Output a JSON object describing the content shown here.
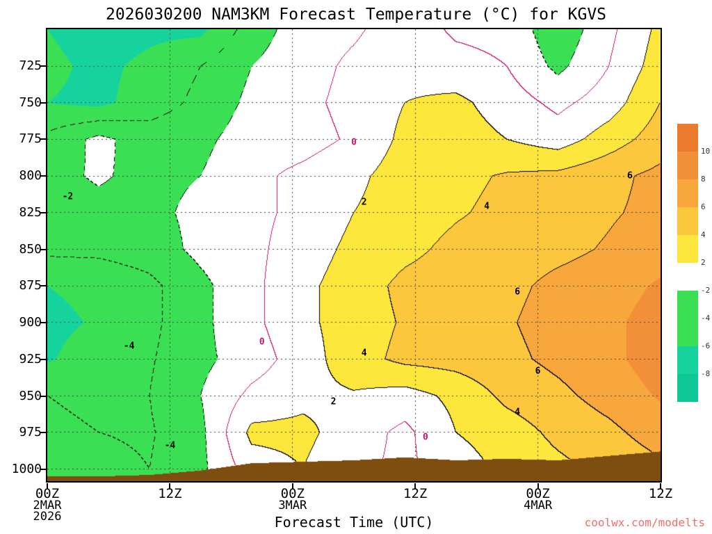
{
  "title": "2026030200 NAM3KM Forecast Temperature (°C) for KGVS",
  "xlabel": "Forecast Time (UTC)",
  "watermark": "coolwx.com/modelts",
  "theme": {
    "watermark_color": "#f46e6e",
    "axis_text_color": "#000000",
    "background": "#ffffff"
  },
  "chart_data": {
    "type": "heatmap",
    "title": "2026030200 NAM3KM Forecast Temperature (°C) for KGVS",
    "xlabel": "Forecast Time (UTC)",
    "x_axis_ticks": [
      {
        "hour": 0,
        "label": "00Z",
        "sub": [
          "2MAR",
          "2026"
        ]
      },
      {
        "hour": 12,
        "label": "12Z",
        "sub": []
      },
      {
        "hour": 24,
        "label": "00Z",
        "sub": [
          "3MAR"
        ]
      },
      {
        "hour": 36,
        "label": "12Z",
        "sub": []
      },
      {
        "hour": 48,
        "label": "00Z",
        "sub": [
          "4MAR"
        ]
      },
      {
        "hour": 60,
        "label": "12Z",
        "sub": []
      }
    ],
    "x_grid_hours": [
      12,
      24,
      36,
      48
    ],
    "y_axis_ticks": [
      725,
      750,
      775,
      800,
      825,
      850,
      875,
      900,
      925,
      950,
      975,
      1000
    ],
    "p_range": [
      700,
      1008
    ],
    "time_hours": [
      0,
      5,
      10,
      15,
      20,
      25,
      30,
      35,
      40,
      45,
      50,
      55,
      60
    ],
    "pressure_levels": [
      700,
      725,
      750,
      775,
      800,
      825,
      850,
      875,
      900,
      925,
      950,
      975,
      1000
    ],
    "temperature_grid": [
      [
        -6.0,
        -7.0,
        -6.5,
        -6.5,
        -3.0,
        -1.0,
        -0.3,
        1.0,
        -0.3,
        -0.5,
        -3.5,
        -0.5,
        2.5
      ],
      [
        -5.5,
        -6.5,
        -5.5,
        -4.0,
        -2.0,
        -0.8,
        0.4,
        1.4,
        0.6,
        0.0,
        -2.5,
        0.0,
        3.0
      ],
      [
        -6.0,
        -6.5,
        -5.0,
        -3.5,
        -1.5,
        -0.5,
        0.6,
        2.0,
        2.5,
        1.0,
        -0.5,
        1.0,
        4.0
      ],
      [
        -3.5,
        -1.5,
        -3.0,
        -2.5,
        -1.0,
        -0.8,
        0.3,
        2.5,
        3.0,
        2.0,
        1.0,
        3.0,
        5.0
      ],
      [
        -2.5,
        -1.8,
        -2.5,
        -2.0,
        -0.5,
        0.5,
        1.5,
        3.0,
        3.5,
        4.2,
        4.5,
        5.5,
        6.5
      ],
      [
        -3.0,
        -2.5,
        -2.5,
        -1.5,
        -0.5,
        0.5,
        2.0,
        3.0,
        3.8,
        4.5,
        5.0,
        5.8,
        6.5
      ],
      [
        -3.5,
        -3.5,
        -3.0,
        -1.5,
        -0.5,
        1.0,
        2.5,
        3.5,
        4.5,
        5.0,
        5.5,
        6.2,
        7.0
      ],
      [
        -6.0,
        -5.5,
        -4.5,
        -2.5,
        -0.5,
        1.5,
        3.0,
        4.5,
        5.0,
        5.5,
        6.5,
        7.0,
        8.3
      ],
      [
        -6.5,
        -5.8,
        -4.5,
        -2.5,
        -0.5,
        1.5,
        3.0,
        4.2,
        5.0,
        5.8,
        6.8,
        7.5,
        9.0
      ],
      [
        -6.2,
        -5.0,
        -4.2,
        -2.5,
        -1.0,
        1.0,
        3.2,
        4.5,
        4.8,
        5.5,
        6.5,
        7.5,
        9.0
      ],
      [
        -4.0,
        -4.5,
        -4.0,
        -2.0,
        0.5,
        1.5,
        1.8,
        1.2,
        2.5,
        4.5,
        5.5,
        6.8,
        8.2
      ],
      [
        -3.5,
        -4.0,
        -4.2,
        -2.5,
        2.5,
        2.5,
        1.0,
        -0.5,
        2.0,
        3.0,
        4.5,
        5.5,
        7.0
      ],
      [
        -3.0,
        -3.5,
        -4.0,
        -2.5,
        1.0,
        2.0,
        0.4,
        -0.4,
        1.0,
        2.5,
        3.5,
        4.5,
        5.5
      ]
    ],
    "terrain_pressure": [
      1005,
      1005,
      1004,
      1001,
      996,
      995,
      994,
      992,
      994,
      993,
      994,
      991,
      988
    ],
    "contour_levels": {
      "zero": [
        0
      ],
      "positive": [
        2,
        4,
        6
      ],
      "negative_dashed": [
        -2,
        -4
      ]
    },
    "contour_labels": [
      {
        "t": 2,
        "p": 814,
        "level": -2,
        "text": "-2"
      },
      {
        "t": 8,
        "p": 916,
        "level": -4,
        "text": "-4"
      },
      {
        "t": 12,
        "p": 984,
        "level": -4,
        "text": "-4"
      },
      {
        "t": 21,
        "p": 913,
        "level": 0,
        "text": "0"
      },
      {
        "t": 30,
        "p": 777,
        "level": 0,
        "text": "0"
      },
      {
        "t": 37,
        "p": 978,
        "level": 0,
        "text": "0"
      },
      {
        "t": 28,
        "p": 954,
        "level": 2,
        "text": "2"
      },
      {
        "t": 31,
        "p": 818,
        "level": 2,
        "text": "2"
      },
      {
        "t": 31,
        "p": 921,
        "level": 4,
        "text": "4"
      },
      {
        "t": 43,
        "p": 821,
        "level": 4,
        "text": "4"
      },
      {
        "t": 46,
        "p": 961,
        "level": 4,
        "text": "4"
      },
      {
        "t": 46,
        "p": 879,
        "level": 6,
        "text": "6"
      },
      {
        "t": 48,
        "p": 933,
        "level": 6,
        "text": "6"
      },
      {
        "t": 57,
        "p": 800,
        "level": 6,
        "text": "6"
      }
    ],
    "color_scale": {
      "thresholds": [
        10,
        8,
        6,
        4,
        2,
        -2,
        -4,
        -6,
        -8
      ],
      "band_colors": [
        "#ec7a2d",
        "#f2903a",
        "#f7a73b",
        "#fcc63d",
        "#fde73c",
        "#ffffff",
        "#3bdf54",
        "#3bdf54",
        "#16d39e",
        "#0fc795"
      ]
    },
    "colors": {
      "terrain": "#7e4d10",
      "zero_line": "#c2186e",
      "contour": "#000000",
      "grid": "#444444"
    },
    "legend_position": "right",
    "grid_on": true
  }
}
